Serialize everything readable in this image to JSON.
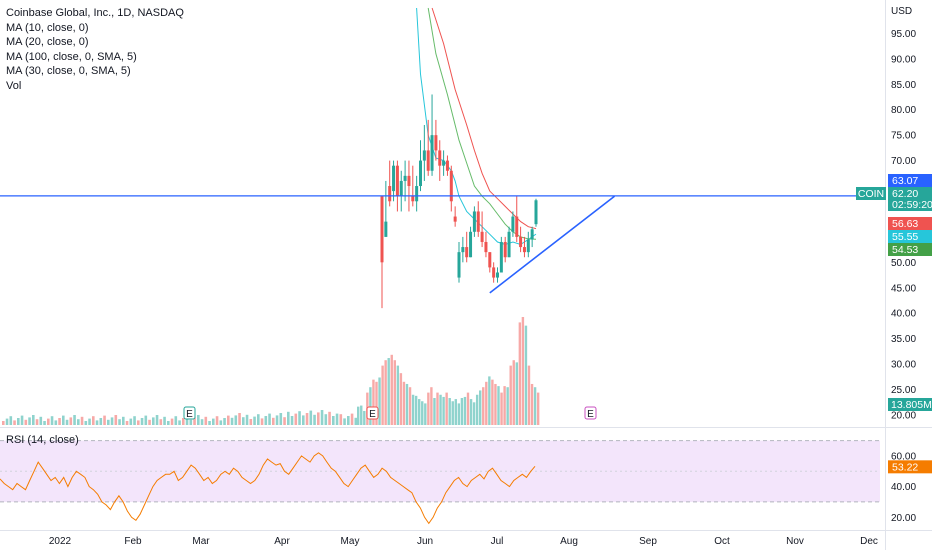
{
  "header": {
    "title": "Coinbase Global, Inc., 1D, NASDAQ",
    "indicators": [
      "MA (10, close, 0)",
      "MA (20, close, 0)",
      "MA (100, close, 0, SMA, 5)",
      "MA (30, close, 0, SMA, 5)",
      "Vol"
    ],
    "rsi_label": "RSI (14, close)"
  },
  "colors": {
    "up": "#26a69a",
    "down": "#ef5350",
    "up_vol": "#8fd3cd",
    "down_vol": "#f7a9a7",
    "ma10": "#26c6da",
    "ma20": "#ef5350",
    "ma30": "#66bb6a",
    "hline": "#2962ff",
    "rsi_line": "#f57c00",
    "rsi_bg": "#f3e5fb",
    "grid": "#f0f3fa",
    "axis_text": "#131722"
  },
  "chart_data": [
    {
      "type": "candlestick",
      "title": "Coinbase Global, Inc., 1D, NASDAQ",
      "currency": "USD",
      "x_ticks": [
        "2022",
        "Feb",
        "Mar",
        "Apr",
        "May",
        "Jun",
        "Jul",
        "Aug",
        "Sep",
        "Oct",
        "Nov",
        "Dec"
      ],
      "y_ticks": [
        95,
        90,
        85,
        80,
        75,
        70,
        50,
        45,
        40,
        35,
        30,
        25,
        20
      ],
      "ylim": [
        19,
        100
      ],
      "grid": false,
      "candles": [
        {
          "date": "2021-05-14",
          "o": 63.0,
          "h": 63.0,
          "l": 41.0,
          "c": 50.0
        },
        {
          "date": "2021-05-17",
          "o": 55.0,
          "h": 66.0,
          "l": 55.0,
          "c": 58.0
        },
        {
          "date": "2021-05-18",
          "o": 65.0,
          "h": 70.0,
          "l": 61.0,
          "c": 62.0
        },
        {
          "date": "2021-05-19",
          "o": 64.0,
          "h": 70.0,
          "l": 62.0,
          "c": 69.0
        },
        {
          "date": "2021-05-20",
          "o": 69.0,
          "h": 70.0,
          "l": 60.0,
          "c": 63.0
        },
        {
          "date": "2021-05-23",
          "o": 63.0,
          "h": 68.0,
          "l": 60.0,
          "c": 66.0
        },
        {
          "date": "2021-05-24",
          "o": 66.0,
          "h": 70.0,
          "l": 62.0,
          "c": 67.0
        },
        {
          "date": "2021-05-25",
          "o": 67.0,
          "h": 70.0,
          "l": 60.0,
          "c": 65.0
        },
        {
          "date": "2021-05-26",
          "o": 63.0,
          "h": 69.0,
          "l": 61.0,
          "c": 62.0
        },
        {
          "date": "2021-05-27",
          "o": 62.0,
          "h": 67.0,
          "l": 60.0,
          "c": 65.0
        },
        {
          "date": "2021-05-30",
          "o": 65.0,
          "h": 74.0,
          "l": 64.0,
          "c": 70.0
        },
        {
          "date": "2021-05-31",
          "o": 70.0,
          "h": 77.0,
          "l": 66.0,
          "c": 72.0
        },
        {
          "date": "2021-06-01",
          "o": 72.0,
          "h": 78.0,
          "l": 67.0,
          "c": 68.0
        },
        {
          "date": "2021-06-02",
          "o": 68.0,
          "h": 83.0,
          "l": 67.0,
          "c": 75.0
        },
        {
          "date": "2021-06-03",
          "o": 75.0,
          "h": 78.0,
          "l": 70.0,
          "c": 72.0
        },
        {
          "date": "2021-06-06",
          "o": 72.0,
          "h": 74.0,
          "l": 66.0,
          "c": 69.0
        },
        {
          "date": "2021-06-07",
          "o": 69.0,
          "h": 72.0,
          "l": 67.0,
          "c": 70.0
        },
        {
          "date": "2021-06-08",
          "o": 70.0,
          "h": 71.0,
          "l": 67.0,
          "c": 68.0
        },
        {
          "date": "2021-06-09",
          "o": 68.0,
          "h": 69.0,
          "l": 60.0,
          "c": 62.0
        },
        {
          "date": "2021-06-10",
          "o": 59.0,
          "h": 61.0,
          "l": 57.0,
          "c": 58.0
        },
        {
          "date": "2021-06-13",
          "o": 47.0,
          "h": 54.0,
          "l": 46.0,
          "c": 52.0
        },
        {
          "date": "2021-06-14",
          "o": 52.0,
          "h": 55.0,
          "l": 50.0,
          "c": 53.0
        },
        {
          "date": "2021-06-15",
          "o": 53.0,
          "h": 56.0,
          "l": 50.0,
          "c": 51.0
        },
        {
          "date": "2021-06-16",
          "o": 51.0,
          "h": 57.0,
          "l": 51.0,
          "c": 56.0
        },
        {
          "date": "2021-06-17",
          "o": 56.0,
          "h": 61.0,
          "l": 55.0,
          "c": 60.0
        },
        {
          "date": "2021-06-20",
          "o": 60.0,
          "h": 62.0,
          "l": 55.0,
          "c": 56.0
        },
        {
          "date": "2021-06-21",
          "o": 56.0,
          "h": 60.0,
          "l": 53.0,
          "c": 54.0
        },
        {
          "date": "2021-06-22",
          "o": 54.0,
          "h": 56.0,
          "l": 51.0,
          "c": 52.0
        },
        {
          "date": "2021-06-23",
          "o": 52.0,
          "h": 52.0,
          "l": 48.0,
          "c": 49.0
        },
        {
          "date": "2021-06-24",
          "o": 49.0,
          "h": 50.0,
          "l": 46.0,
          "c": 47.0
        },
        {
          "date": "2021-06-27",
          "o": 47.0,
          "h": 49.0,
          "l": 46.0,
          "c": 48.0
        },
        {
          "date": "2021-06-28",
          "o": 48.0,
          "h": 55.0,
          "l": 48.0,
          "c": 54.0
        },
        {
          "date": "2021-06-29",
          "o": 54.0,
          "h": 55.0,
          "l": 50.0,
          "c": 51.0
        },
        {
          "date": "2021-06-30",
          "o": 51.0,
          "h": 57.0,
          "l": 51.0,
          "c": 56.0
        },
        {
          "date": "2021-07-01",
          "o": 56.0,
          "h": 60.0,
          "l": 55.0,
          "c": 59.0
        },
        {
          "date": "2021-07-04",
          "o": 59.0,
          "h": 63.0,
          "l": 54.0,
          "c": 55.0
        },
        {
          "date": "2021-07-05",
          "o": 55.0,
          "h": 57.0,
          "l": 52.0,
          "c": 53.0
        },
        {
          "date": "2021-07-06",
          "o": 53.0,
          "h": 55.0,
          "l": 51.0,
          "c": 52.0
        },
        {
          "date": "2021-07-07",
          "o": 52.0,
          "h": 56.0,
          "l": 51.0,
          "c": 54.5
        },
        {
          "date": "2021-07-08",
          "o": 54.5,
          "h": 57.0,
          "l": 53.0,
          "c": 56.5
        },
        {
          "date": "2021-07-11",
          "o": 57.5,
          "h": 62.5,
          "l": 57.0,
          "c": 62.2
        }
      ],
      "moving_averages": [
        {
          "name": "MA (10, close, 0)",
          "color": "#26c6da",
          "points": [
            [
              9,
              100
            ],
            [
              10,
              87
            ],
            [
              12,
              75
            ],
            [
              14,
              70.5
            ],
            [
              16,
              70
            ],
            [
              18,
              68
            ],
            [
              19,
              66
            ],
            [
              20,
              63
            ],
            [
              22,
              60
            ],
            [
              24,
              58.5
            ],
            [
              26,
              57
            ],
            [
              28,
              55.5
            ],
            [
              30,
              54
            ],
            [
              32,
              53.5
            ],
            [
              34,
              54
            ],
            [
              36,
              53.5
            ],
            [
              38,
              54.5
            ],
            [
              40,
              55.55
            ]
          ]
        },
        {
          "name": "MA (20, close, 0)",
          "color": "#66bb6a",
          "points": [
            [
              12,
              100
            ],
            [
              14,
              91
            ],
            [
              17,
              83
            ],
            [
              20,
              74
            ],
            [
              22,
              69.5
            ],
            [
              24,
              65
            ],
            [
              26,
              63
            ],
            [
              28,
              61.5
            ],
            [
              30,
              59.5
            ],
            [
              32,
              57.5
            ],
            [
              34,
              56
            ],
            [
              36,
              55
            ],
            [
              38,
              54.6
            ],
            [
              40,
              54.53
            ]
          ]
        },
        {
          "name": "MA (30, close, 0, SMA, 5)",
          "color": "#ef5350",
          "points": [
            [
              13,
              100
            ],
            [
              16,
              93
            ],
            [
              19,
              84
            ],
            [
              22,
              77
            ],
            [
              24,
              72
            ],
            [
              26,
              67.5
            ],
            [
              28,
              64
            ],
            [
              30,
              62.5
            ],
            [
              32,
              61
            ],
            [
              34,
              59.5
            ],
            [
              36,
              58
            ],
            [
              38,
              57
            ],
            [
              40,
              56.63
            ]
          ]
        }
      ],
      "horizontal_line": 63.07,
      "trend_line": [
        [
          28,
          44
        ],
        [
          50,
          63
        ]
      ],
      "price_tags": [
        {
          "value": 63.07,
          "label": "63.07",
          "color": "#2962ff"
        },
        {
          "value": 62.2,
          "label": "62.20",
          "sublabel": "02:59:20",
          "symbol": "COIN",
          "color": "#26a69a"
        },
        {
          "value": 56.63,
          "label": "56.63",
          "color": "#ef5350"
        },
        {
          "value": 55.55,
          "label": "55.55",
          "color": "#26c6da"
        },
        {
          "value": 54.53,
          "label": "54.53",
          "color": "#43a047"
        }
      ]
    },
    {
      "type": "bar",
      "title": "Vol",
      "volume_label": "13.805M",
      "pre_ipo_bars": 95,
      "heights": [
        0.17,
        0.18,
        0.13,
        0.3,
        0.35,
        0.42,
        0.4,
        0.44,
        0.55,
        0.6,
        0.62,
        0.65,
        0.6,
        0.55,
        0.48,
        0.4,
        0.38,
        0.35,
        0.28,
        0.27,
        0.24,
        0.22,
        0.2,
        0.3,
        0.35,
        0.25,
        0.3,
        0.28,
        0.26,
        0.3,
        0.25,
        0.22,
        0.24,
        0.2,
        0.25,
        0.26,
        0.3,
        0.24,
        0.21,
        0.28,
        0.32,
        0.35,
        0.4,
        0.45,
        0.42,
        0.38,
        0.36,
        0.3,
        0.36,
        0.35,
        0.55,
        0.6,
        0.58,
        0.95,
        1.0,
        0.92,
        0.55,
        0.38,
        0.35,
        0.3
      ],
      "earnings_markers": [
        "E",
        "E",
        "E"
      ]
    },
    {
      "type": "line",
      "title": "RSI (14, close)",
      "y_ticks": [
        60,
        40,
        20
      ],
      "ylim": [
        13,
        73
      ],
      "band": [
        30,
        70
      ],
      "current": 53.22,
      "current_label": "53.22",
      "values": [
        45,
        42,
        40,
        38,
        42,
        40,
        38,
        44,
        50,
        56,
        52,
        48,
        44,
        46,
        42,
        46,
        40,
        46,
        50,
        48,
        46,
        40,
        38,
        35,
        30,
        28,
        25,
        30,
        34,
        30,
        24,
        20,
        18,
        22,
        28,
        34,
        40,
        44,
        46,
        48,
        48,
        50,
        44,
        46,
        50,
        54,
        52,
        48,
        44,
        46,
        42,
        44,
        48,
        50,
        48,
        52,
        50,
        46,
        44,
        42,
        44,
        48,
        54,
        58,
        56,
        54,
        55,
        50,
        48,
        52,
        56,
        60,
        58,
        56,
        60,
        62,
        60,
        56,
        52,
        50,
        46,
        42,
        40,
        44,
        48,
        52,
        54,
        50,
        46,
        48,
        52,
        50,
        46,
        44,
        42,
        40,
        38,
        36,
        30,
        26,
        20,
        16,
        20,
        26,
        30,
        36,
        40,
        44,
        46,
        42,
        40,
        44,
        46,
        48,
        45,
        50,
        52,
        48,
        44,
        42,
        40,
        44,
        46,
        48,
        46,
        50,
        53.22
      ]
    }
  ],
  "x_axis_labels": [
    "2022",
    "Feb",
    "Mar",
    "Apr",
    "May",
    "Jun",
    "Jul",
    "Aug",
    "Sep",
    "Oct",
    "Nov",
    "Dec"
  ],
  "price_axis_labels": [
    "USD",
    "95.00",
    "90.00",
    "85.00",
    "80.00",
    "75.00",
    "70.00",
    "50.00",
    "45.00",
    "40.00",
    "35.00",
    "30.00",
    "25.00",
    "20.00"
  ],
  "rsi_axis_labels": [
    "60.00",
    "40.00",
    "20.00"
  ]
}
